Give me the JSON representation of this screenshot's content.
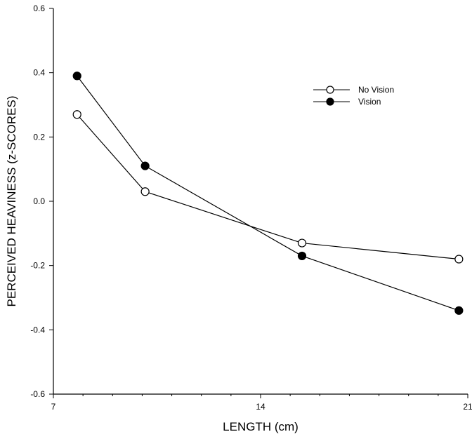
{
  "chart_data": {
    "type": "line",
    "title": "",
    "xlabel": "LENGTH (cm)",
    "ylabel": "PERCEIVED HEAVINESS (z-SCORES)",
    "xlim": [
      7,
      21
    ],
    "ylim": [
      -0.6,
      0.6
    ],
    "x_ticks": [
      7,
      14,
      21
    ],
    "x_minor_ticks": [
      8,
      9,
      10,
      11,
      12,
      13,
      15,
      16,
      17,
      18,
      19,
      20
    ],
    "y_ticks": [
      -0.6,
      -0.4,
      -0.2,
      0.0,
      0.2,
      0.4,
      0.6
    ],
    "y_tick_labels": [
      "-0.6",
      "-0.4",
      "-0.2",
      "0.0",
      "0.2",
      "0.4",
      "0.6"
    ],
    "grid": false,
    "legend_position": "top-right",
    "series": [
      {
        "name": "No Vision",
        "marker": "open-circle",
        "x": [
          7.8,
          10.1,
          15.4,
          20.7
        ],
        "y": [
          0.27,
          0.03,
          -0.13,
          -0.18
        ]
      },
      {
        "name": "Vision",
        "marker": "filled-circle",
        "x": [
          7.8,
          10.1,
          15.4,
          20.7
        ],
        "y": [
          0.39,
          0.11,
          -0.17,
          -0.34
        ]
      }
    ]
  }
}
